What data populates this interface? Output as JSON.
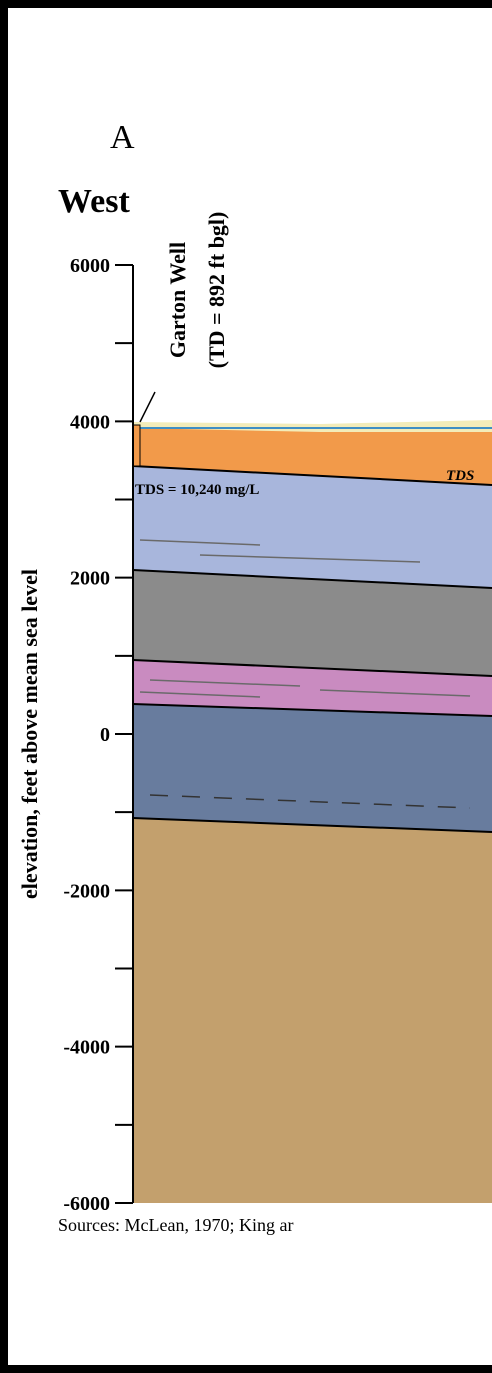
{
  "panel_label": "A",
  "direction": "West",
  "well": {
    "name": "Garton Well",
    "depth": "(TD = 892 ft bgl)",
    "tds": "TDS = 10,240 mg/L"
  },
  "tds_note": "TDS",
  "y_axis": {
    "label": "elevation, feet above mean sea level",
    "ylim": [
      -6000,
      6000
    ],
    "yticks": [
      6000,
      4000,
      2000,
      0,
      -2000,
      -4000,
      -6000
    ]
  },
  "sources": "Sources:  McLean, 1970; King ar"
}
